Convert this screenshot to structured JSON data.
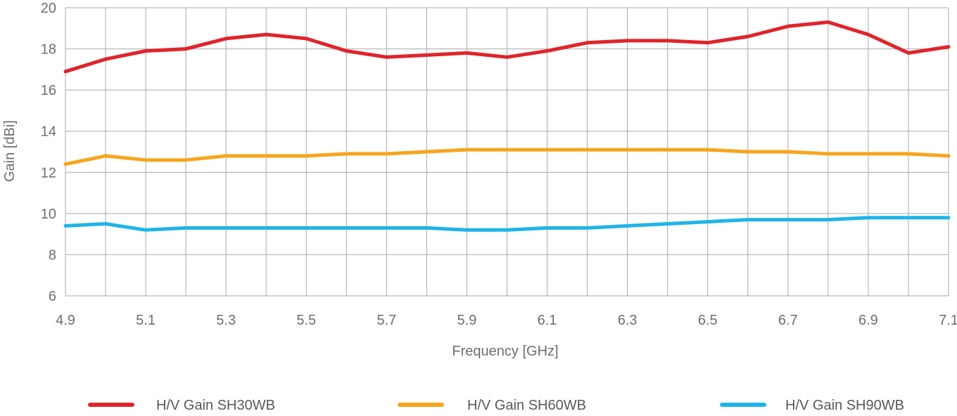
{
  "chart_data": {
    "type": "line",
    "title": "",
    "xlabel": "Frequency [GHz]",
    "ylabel": "Gain [dBi]",
    "xlim": [
      4.9,
      7.1
    ],
    "ylim": [
      6,
      20
    ],
    "grid": true,
    "legend_position": "bottom",
    "x_ticks": [
      "4.9",
      "5.1",
      "5.3",
      "5.5",
      "5.7",
      "5.9",
      "6.1",
      "6.3",
      "6.5",
      "6.7",
      "6.9",
      "7.1"
    ],
    "y_ticks": [
      "6",
      "8",
      "10",
      "12",
      "14",
      "16",
      "18",
      "20"
    ],
    "x": [
      4.9,
      5.0,
      5.1,
      5.2,
      5.3,
      5.4,
      5.5,
      5.6,
      5.7,
      5.8,
      5.9,
      6.0,
      6.1,
      6.2,
      6.3,
      6.4,
      6.5,
      6.6,
      6.7,
      6.8,
      6.9,
      7.0,
      7.1
    ],
    "series": [
      {
        "name": "H/V Gain SH30WB",
        "color": "#e0242b",
        "values": [
          16.9,
          17.5,
          17.9,
          18.0,
          18.5,
          18.7,
          18.5,
          17.9,
          17.6,
          17.7,
          17.8,
          17.6,
          17.9,
          18.3,
          18.4,
          18.4,
          18.3,
          18.6,
          19.1,
          19.3,
          18.7,
          17.8,
          18.1
        ]
      },
      {
        "name": "H/V Gain SH60WB",
        "color": "#f7a51d",
        "values": [
          12.4,
          12.8,
          12.6,
          12.6,
          12.8,
          12.8,
          12.8,
          12.9,
          12.9,
          13.0,
          13.1,
          13.1,
          13.1,
          13.1,
          13.1,
          13.1,
          13.1,
          13.0,
          13.0,
          12.9,
          12.9,
          12.9,
          12.8
        ]
      },
      {
        "name": "H/V Gain SH90WB",
        "color": "#1fb4e8",
        "values": [
          9.4,
          9.5,
          9.2,
          9.3,
          9.3,
          9.3,
          9.3,
          9.3,
          9.3,
          9.3,
          9.2,
          9.2,
          9.3,
          9.3,
          9.4,
          9.5,
          9.6,
          9.7,
          9.7,
          9.7,
          9.8,
          9.8,
          9.8
        ]
      }
    ]
  }
}
